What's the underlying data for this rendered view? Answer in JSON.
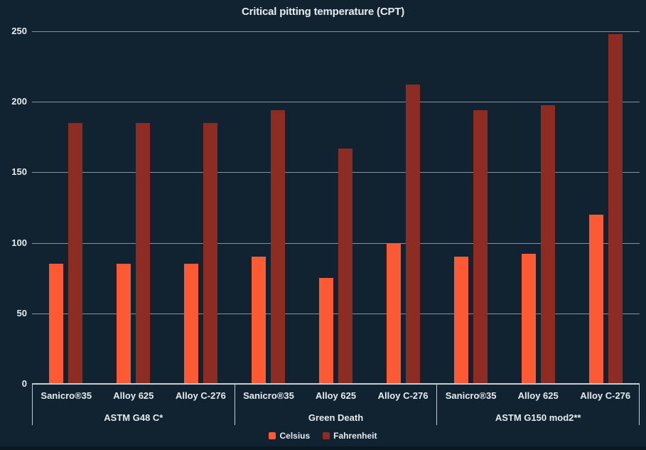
{
  "title": "Critical pitting temperature (CPT)",
  "colors": {
    "background": "#112330",
    "celsius": "#fb5a35",
    "fahrenheit": "#8c2c23",
    "gridline": "#8095a1",
    "axis_border": "#c2cdd4",
    "text": "#e6ebef"
  },
  "y_axis": {
    "min": 0,
    "max": 250,
    "ticks": [
      0,
      50,
      100,
      150,
      200,
      250
    ]
  },
  "legend": {
    "items": [
      {
        "label": "Celsius",
        "color": "#fb5a35",
        "key": "celsius"
      },
      {
        "label": "Fahrenheit",
        "color": "#8c2c23",
        "key": "fahrenheit"
      }
    ]
  },
  "chart_data": {
    "type": "bar",
    "title": "Critical pitting temperature (CPT)",
    "ylabel": "",
    "xlabel": "",
    "ylim": [
      0,
      250
    ],
    "grid": true,
    "legend_position": "bottom",
    "groups": [
      {
        "label": "ASTM G48 C*",
        "categories": [
          "Sanicro®35",
          "Alloy 625",
          "Alloy C-276"
        ],
        "series": [
          {
            "name": "Celsius",
            "key": "celsius",
            "values": [
              85,
              85,
              85
            ]
          },
          {
            "name": "Fahrenheit",
            "key": "fahrenheit",
            "values": [
              185,
              185,
              185
            ]
          }
        ]
      },
      {
        "label": "Green Death",
        "categories": [
          "Sanicro®35",
          "Alloy 625",
          "Alloy C-276"
        ],
        "series": [
          {
            "name": "Celsius",
            "key": "celsius",
            "values": [
              90,
              75,
              100
            ]
          },
          {
            "name": "Fahrenheit",
            "key": "fahrenheit",
            "values": [
              194,
              167,
              212
            ]
          }
        ]
      },
      {
        "label": "ASTM G150 mod2**",
        "categories": [
          "Sanicro®35",
          "Alloy 625",
          "Alloy C-276"
        ],
        "series": [
          {
            "name": "Celsius",
            "key": "celsius",
            "values": [
              90,
              92,
              120
            ]
          },
          {
            "name": "Fahrenheit",
            "key": "fahrenheit",
            "values": [
              194,
              197.6,
              248
            ]
          }
        ]
      }
    ]
  }
}
